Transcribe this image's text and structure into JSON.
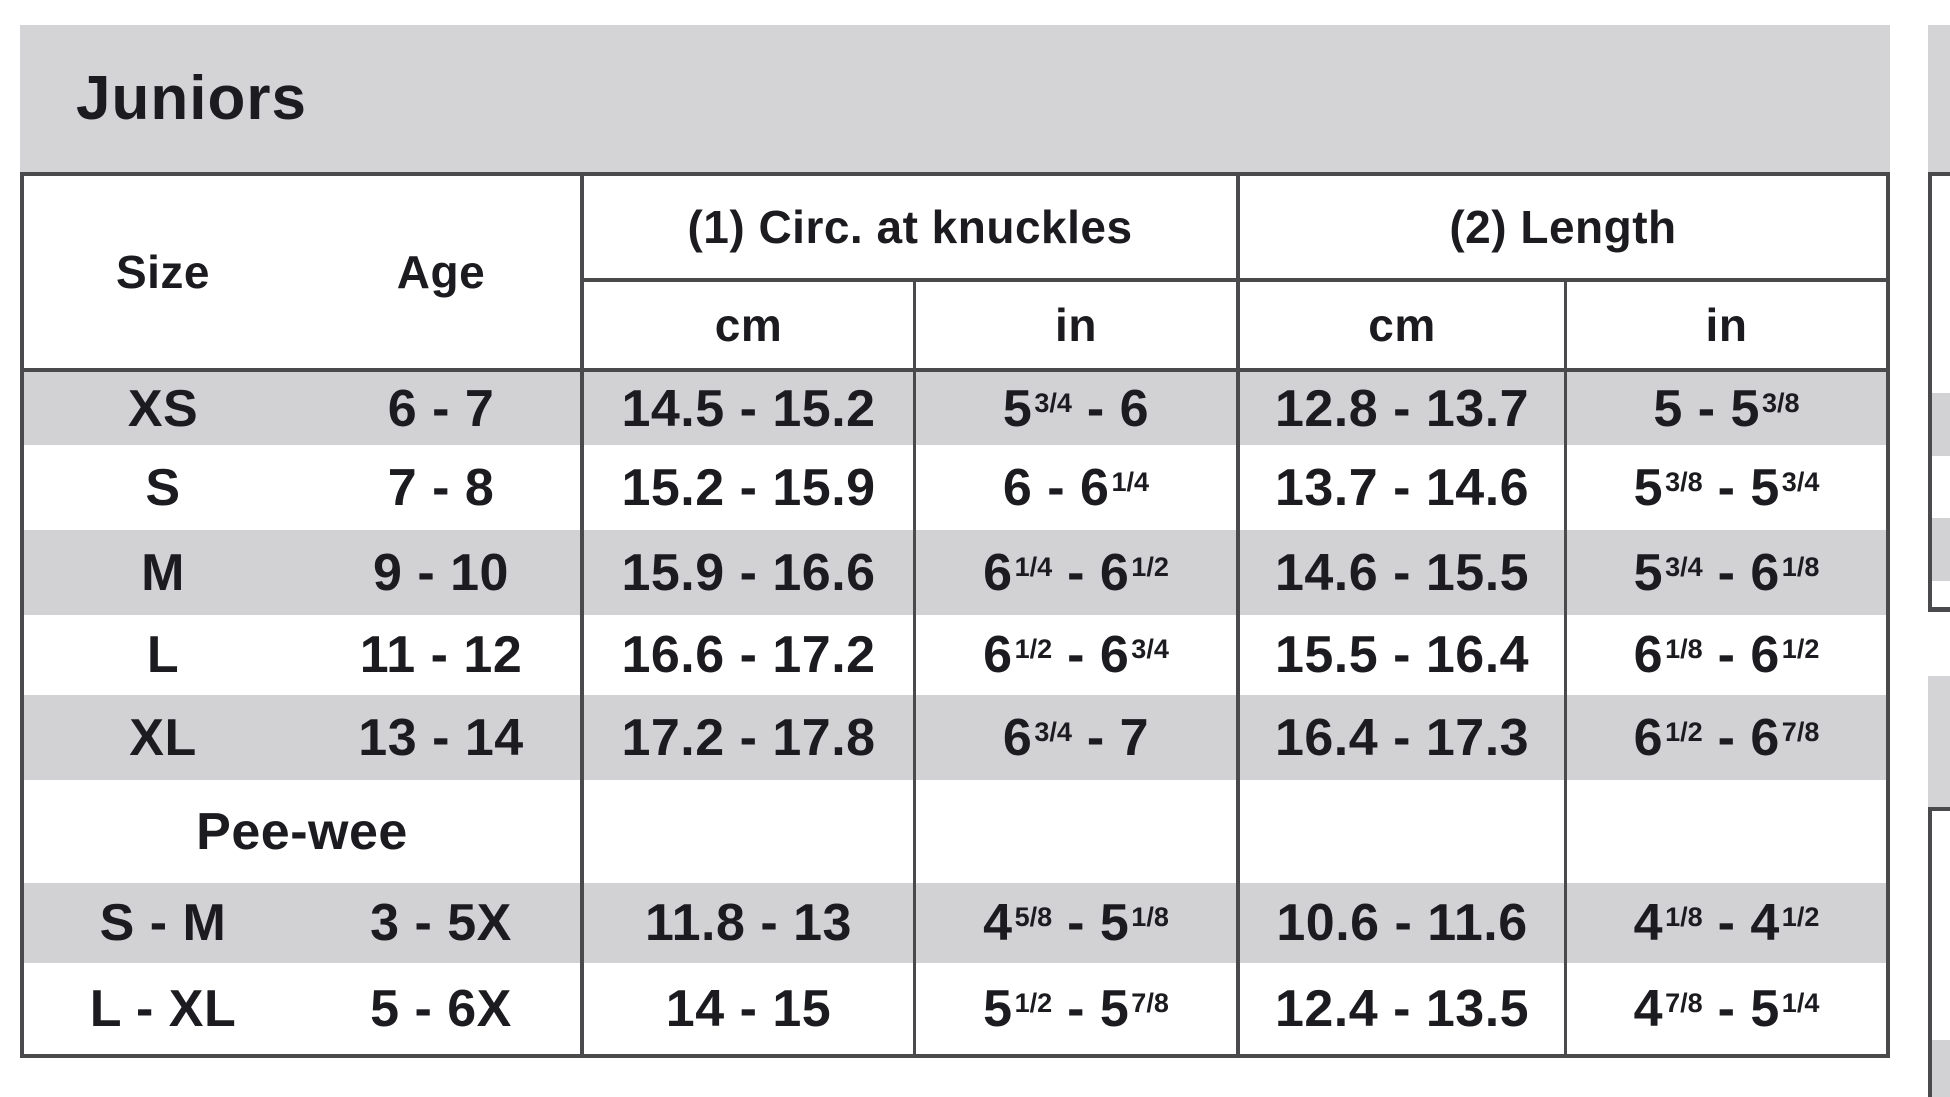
{
  "chart_data": {
    "type": "table",
    "title": "Juniors",
    "column_groups": [
      {
        "label": "(1) Circ. at knuckles"
      },
      {
        "label": "(2) Length"
      }
    ],
    "columns": [
      "Size",
      "Age",
      "cm",
      "in",
      "cm",
      "in"
    ],
    "rows": [
      {
        "size": "XS",
        "age": "6 - 7",
        "circ_cm": "14.5 - 15.2",
        "circ_in": "5{3/4} - 6",
        "len_cm": "12.8 - 13.7",
        "len_in": "5 - 5{3/8}",
        "shaded": true
      },
      {
        "size": "S",
        "age": "7 - 8",
        "circ_cm": "15.2 - 15.9",
        "circ_in": "6 - 6{1/4}",
        "len_cm": "13.7 - 14.6",
        "len_in": "5{3/8} - 5{3/4}",
        "shaded": false
      },
      {
        "size": "M",
        "age": "9 - 10",
        "circ_cm": "15.9 - 16.6",
        "circ_in": "6{1/4} - 6{1/2}",
        "len_cm": "14.6 - 15.5",
        "len_in": "5{3/4} - 6{1/8}",
        "shaded": true
      },
      {
        "size": "L",
        "age": "11 - 12",
        "circ_cm": "16.6 - 17.2",
        "circ_in": "6{1/2} - 6{3/4}",
        "len_cm": "15.5 - 16.4",
        "len_in": "6{1/8} - 6{1/2}",
        "shaded": false
      },
      {
        "size": "XL",
        "age": "13 - 14",
        "circ_cm": "17.2 - 17.8",
        "circ_in": "6{3/4} - 7",
        "len_cm": "16.4 - 17.3",
        "len_in": "6{1/2} - 6{7/8}",
        "shaded": true
      },
      {
        "section": "Pee-wee",
        "shaded": false
      },
      {
        "size": "S - M",
        "age": "3 - 5X",
        "circ_cm": "11.8 - 13",
        "circ_in": "4{5/8} - 5{1/8}",
        "len_cm": "10.6 - 11.6",
        "len_in": "4{1/8} - 4{1/2}",
        "shaded": true
      },
      {
        "size": "L - XL",
        "age": "5 - 6X",
        "circ_cm": "14 - 15",
        "circ_in": "5{1/2} - 5{7/8}",
        "len_cm": "12.4 - 13.5",
        "len_in": "4{7/8} - 5{1/4}",
        "shaded": false
      }
    ],
    "layout_hints": {
      "fraction_token_format": "{numerator/denominator} renders as superscript fraction",
      "striped_rows": true,
      "adjacent_chart_partially_visible_at_right_edge": true
    }
  },
  "colors": {
    "header_band": "#d4d4d6",
    "row_stripe": "#d2d2d4",
    "border": "#4a4a4d",
    "text": "#1b1b20",
    "background": "#ffffff"
  }
}
